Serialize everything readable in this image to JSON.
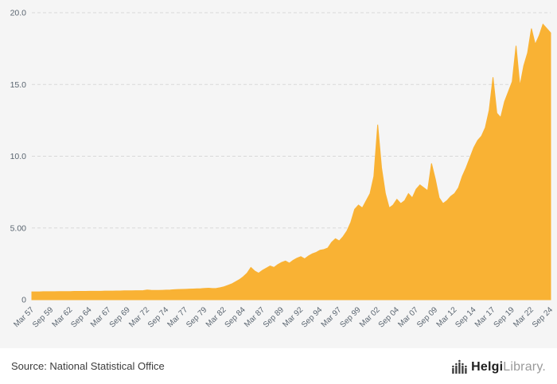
{
  "chart_data": {
    "type": "area",
    "frequency": "semiannual",
    "x_start_label": "Mar 57",
    "x_end_label": "Sep 24",
    "x_tick_step": 5,
    "x_tick_labels": [
      "Mar 57",
      "Sep 59",
      "Mar 62",
      "Sep 64",
      "Mar 67",
      "Sep 69",
      "Mar 72",
      "Sep 74",
      "Mar 77",
      "Sep 79",
      "Mar 82",
      "Sep 84",
      "Mar 87",
      "Sep 89",
      "Mar 92",
      "Sep 94",
      "Mar 97",
      "Sep 99",
      "Mar 02",
      "Sep 04",
      "Mar 07",
      "Sep 09",
      "Mar 12",
      "Sep 14",
      "Mar 17",
      "Sep 19",
      "Mar 22",
      "Sep 24"
    ],
    "values": [
      0.55,
      0.55,
      0.55,
      0.56,
      0.56,
      0.56,
      0.56,
      0.57,
      0.57,
      0.57,
      0.57,
      0.58,
      0.58,
      0.58,
      0.58,
      0.59,
      0.59,
      0.59,
      0.59,
      0.6,
      0.6,
      0.6,
      0.61,
      0.61,
      0.62,
      0.62,
      0.62,
      0.63,
      0.63,
      0.64,
      0.68,
      0.66,
      0.65,
      0.65,
      0.66,
      0.67,
      0.68,
      0.7,
      0.71,
      0.72,
      0.73,
      0.74,
      0.75,
      0.76,
      0.77,
      0.79,
      0.8,
      0.78,
      0.79,
      0.84,
      0.9,
      1.0,
      1.1,
      1.25,
      1.4,
      1.6,
      1.85,
      2.25,
      2.0,
      1.85,
      2.05,
      2.2,
      2.35,
      2.25,
      2.45,
      2.6,
      2.7,
      2.55,
      2.75,
      2.9,
      3.0,
      2.85,
      3.05,
      3.2,
      3.3,
      3.45,
      3.5,
      3.6,
      4.0,
      4.25,
      4.1,
      4.4,
      4.8,
      5.4,
      6.3,
      6.6,
      6.4,
      6.9,
      7.4,
      8.6,
      12.2,
      9.2,
      7.4,
      6.4,
      6.6,
      7.0,
      6.7,
      6.9,
      7.4,
      7.1,
      7.7,
      8.0,
      7.8,
      7.6,
      9.5,
      8.4,
      7.1,
      6.7,
      6.9,
      7.2,
      7.4,
      7.8,
      8.6,
      9.2,
      9.9,
      10.6,
      11.1,
      11.4,
      12.0,
      13.2,
      15.5,
      13.0,
      12.7,
      13.8,
      14.5,
      15.2,
      17.7,
      14.9,
      16.3,
      17.2,
      18.9,
      17.8,
      18.4,
      19.2,
      18.9,
      18.6
    ],
    "ylim": [
      0,
      20
    ],
    "yticks": [
      {
        "value": 0,
        "label": "0"
      },
      {
        "value": 5,
        "label": "5.00"
      },
      {
        "value": 10,
        "label": "10.0"
      },
      {
        "value": 15,
        "label": "15.0"
      },
      {
        "value": 20,
        "label": "20.0"
      }
    ],
    "grid": "horizontal-dashed",
    "legend": "none",
    "colors": {
      "area": "#F9B234",
      "background": "#f5f5f5",
      "gridline": "#d9d9d9",
      "axis_text": "#5a6570"
    }
  },
  "footer": {
    "source_text": "Source: National Statistical Office",
    "logo": {
      "primary": "Helgi",
      "secondary": "Library."
    }
  }
}
